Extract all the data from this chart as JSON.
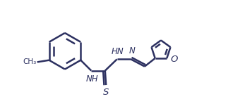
{
  "background_color": "#ffffff",
  "line_color": "#2c3060",
  "line_width": 1.8,
  "font_size": 8.5,
  "fig_width": 3.47,
  "fig_height": 1.51,
  "dpi": 100,
  "xlim": [
    0,
    10.0
  ],
  "ylim": [
    -1.0,
    4.5
  ]
}
